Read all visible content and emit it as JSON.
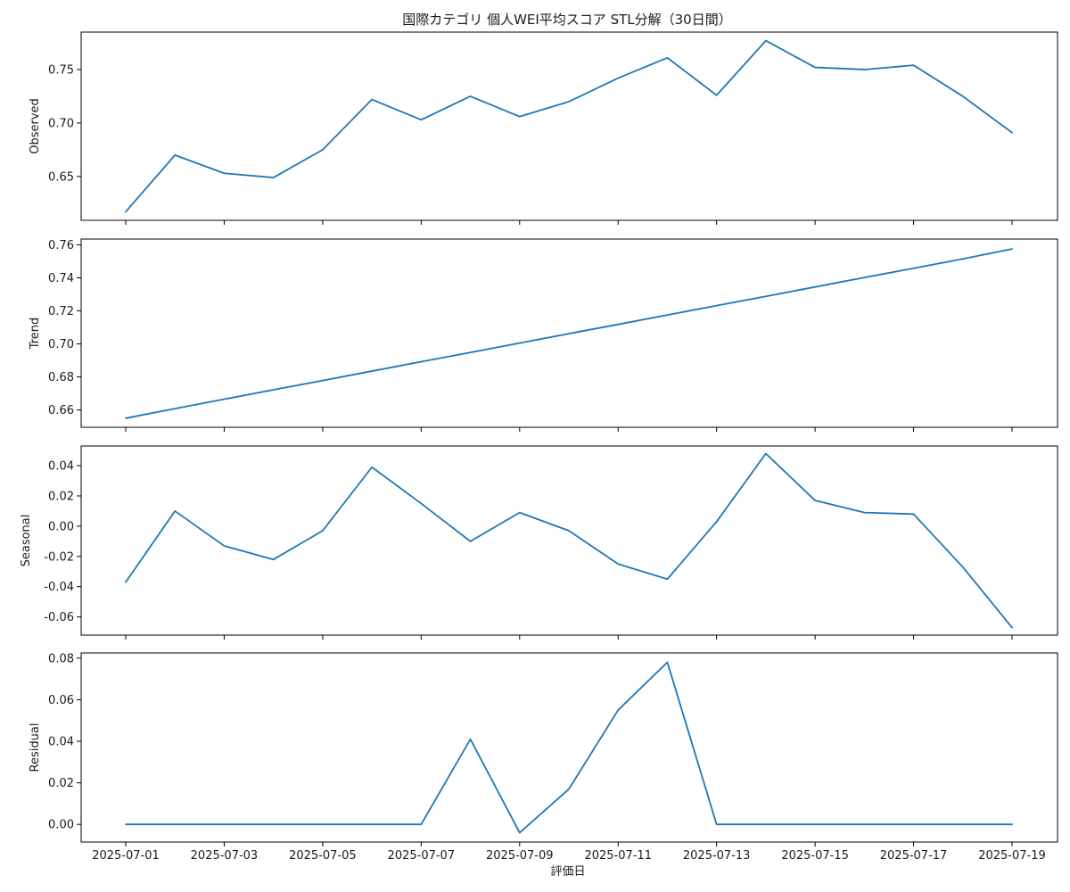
{
  "chart_data": {
    "type": "line",
    "title": "国際カテゴリ 個人WEI平均スコア STL分解（30日間）",
    "xlabel": "評価日",
    "x": [
      "2025-07-01",
      "2025-07-02",
      "2025-07-03",
      "2025-07-04",
      "2025-07-05",
      "2025-07-06",
      "2025-07-07",
      "2025-07-08",
      "2025-07-09",
      "2025-07-10",
      "2025-07-11",
      "2025-07-12",
      "2025-07-13",
      "2025-07-14",
      "2025-07-15",
      "2025-07-16",
      "2025-07-17",
      "2025-07-18",
      "2025-07-19"
    ],
    "x_tick_labels": [
      "2025-07-01",
      "2025-07-03",
      "2025-07-05",
      "2025-07-07",
      "2025-07-09",
      "2025-07-11",
      "2025-07-13",
      "2025-07-15",
      "2025-07-17",
      "2025-07-19"
    ],
    "line_color": "#1f77b4",
    "grid": false,
    "panels": [
      {
        "ylabel": "Observed",
        "ylim": [
          0.609,
          0.785
        ],
        "yticks": [
          0.65,
          0.7,
          0.75
        ],
        "ytick_labels": [
          "0.65",
          "0.70",
          "0.75"
        ],
        "values": [
          0.617,
          0.67,
          0.653,
          0.649,
          0.675,
          0.722,
          0.703,
          0.725,
          0.706,
          0.72,
          0.742,
          0.761,
          0.726,
          0.777,
          0.752,
          0.75,
          0.754,
          0.725,
          0.691
        ]
      },
      {
        "ylabel": "Trend",
        "ylim": [
          0.6495,
          0.7635
        ],
        "yticks": [
          0.66,
          0.68,
          0.7,
          0.72,
          0.74,
          0.76
        ],
        "ytick_labels": [
          "0.66",
          "0.68",
          "0.70",
          "0.72",
          "0.74",
          "0.76"
        ],
        "values": [
          0.655,
          0.6608,
          0.6665,
          0.6722,
          0.6778,
          0.6835,
          0.6892,
          0.6948,
          0.7005,
          0.7062,
          0.7118,
          0.7175,
          0.7232,
          0.7288,
          0.7345,
          0.7402,
          0.7458,
          0.7515,
          0.7575
        ]
      },
      {
        "ylabel": "Seasonal",
        "ylim": [
          -0.072,
          0.053
        ],
        "yticks": [
          -0.06,
          -0.04,
          -0.02,
          0.0,
          0.02,
          0.04
        ],
        "ytick_labels": [
          "-0.06",
          "-0.04",
          "-0.02",
          "0.00",
          "0.02",
          "0.04"
        ],
        "values": [
          -0.037,
          0.01,
          -0.013,
          -0.022,
          -0.003,
          0.039,
          0.015,
          -0.01,
          0.009,
          -0.003,
          -0.025,
          -0.035,
          0.003,
          0.048,
          0.017,
          0.009,
          0.008,
          -0.027,
          -0.067
        ]
      },
      {
        "ylabel": "Residual",
        "ylim": [
          -0.0085,
          0.0825
        ],
        "yticks": [
          0.0,
          0.02,
          0.04,
          0.06,
          0.08
        ],
        "ytick_labels": [
          "0.00",
          "0.02",
          "0.04",
          "0.06",
          "0.08"
        ],
        "values": [
          0,
          0,
          0,
          0,
          0,
          0,
          0,
          0.041,
          -0.004,
          0.017,
          0.055,
          0.078,
          0,
          0,
          0,
          0,
          0,
          0,
          0
        ]
      }
    ]
  }
}
